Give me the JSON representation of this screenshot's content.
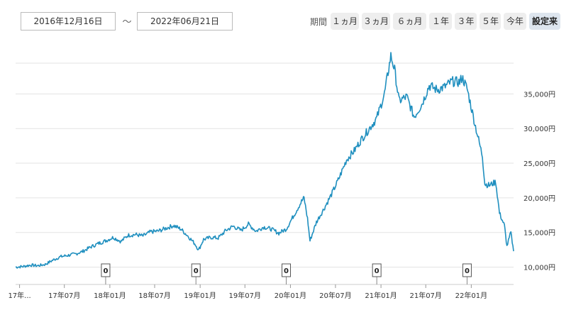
{
  "controls": {
    "start_date": "2016年12月16日",
    "separator": "～",
    "end_date": "2022年06月21日",
    "period_label": "期間",
    "periods": [
      {
        "label": "１ヵ月",
        "active": false
      },
      {
        "label": "３ヵ月",
        "active": false
      },
      {
        "label": "６ヵ月",
        "active": false
      },
      {
        "label": "１年",
        "active": false
      },
      {
        "label": "３年",
        "active": false
      },
      {
        "label": "５年",
        "active": false
      },
      {
        "label": "今年",
        "active": false
      },
      {
        "label": "設定来",
        "active": true
      }
    ]
  },
  "chart_data": {
    "type": "line",
    "title": "",
    "xlabel": "",
    "ylabel": "",
    "ylim": [
      7500,
      42000
    ],
    "xlim": [
      "2016-12-16",
      "2022-06-21"
    ],
    "grid": true,
    "y_ticks": [
      {
        "value": 10000,
        "label": "10,000円"
      },
      {
        "value": 15000,
        "label": "15,000円"
      },
      {
        "value": 20000,
        "label": "20,000円"
      },
      {
        "value": 25000,
        "label": "25,000円"
      },
      {
        "value": 30000,
        "label": "30,000円"
      },
      {
        "value": 35000,
        "label": "35,000円"
      }
    ],
    "x_ticks": [
      {
        "date": "2017-01-01",
        "label": "17年..."
      },
      {
        "date": "2017-07-01",
        "label": "17年07月"
      },
      {
        "date": "2018-01-01",
        "label": "18年01月"
      },
      {
        "date": "2018-07-01",
        "label": "18年07月"
      },
      {
        "date": "2019-01-01",
        "label": "19年01月"
      },
      {
        "date": "2019-07-01",
        "label": "19年07月"
      },
      {
        "date": "2020-01-01",
        "label": "20年01月"
      },
      {
        "date": "2020-07-01",
        "label": "20年07月"
      },
      {
        "date": "2021-01-01",
        "label": "21年01月"
      },
      {
        "date": "2021-07-01",
        "label": "21年07月"
      },
      {
        "date": "2022-01-01",
        "label": "22年01月"
      }
    ],
    "markers": [
      {
        "date": "2017-12-15",
        "label": "0"
      },
      {
        "date": "2018-12-15",
        "label": "0"
      },
      {
        "date": "2019-12-15",
        "label": "0"
      },
      {
        "date": "2020-12-15",
        "label": "0"
      },
      {
        "date": "2021-12-15",
        "label": "0"
      }
    ],
    "series": [
      {
        "color": "#1f8fbf",
        "points": [
          [
            "2016-12-16",
            10000
          ],
          [
            "2017-01-15",
            10100
          ],
          [
            "2017-02-15",
            10300
          ],
          [
            "2017-03-15",
            10200
          ],
          [
            "2017-04-15",
            10400
          ],
          [
            "2017-05-15",
            11000
          ],
          [
            "2017-06-15",
            11500
          ],
          [
            "2017-07-15",
            11700
          ],
          [
            "2017-08-15",
            11900
          ],
          [
            "2017-09-15",
            12300
          ],
          [
            "2017-10-15",
            12900
          ],
          [
            "2017-11-15",
            13400
          ],
          [
            "2017-12-15",
            13800
          ],
          [
            "2018-01-15",
            14300
          ],
          [
            "2018-02-15",
            13700
          ],
          [
            "2018-03-15",
            14600
          ],
          [
            "2018-04-15",
            14700
          ],
          [
            "2018-05-15",
            14500
          ],
          [
            "2018-06-15",
            15100
          ],
          [
            "2018-07-15",
            15200
          ],
          [
            "2018-08-15",
            15600
          ],
          [
            "2018-09-15",
            16000
          ],
          [
            "2018-10-15",
            15500
          ],
          [
            "2018-11-15",
            14400
          ],
          [
            "2018-12-10",
            13400
          ],
          [
            "2018-12-26",
            12500
          ],
          [
            "2019-01-15",
            14000
          ],
          [
            "2019-02-15",
            14300
          ],
          [
            "2019-03-15",
            14200
          ],
          [
            "2019-04-15",
            15300
          ],
          [
            "2019-05-15",
            15900
          ],
          [
            "2019-06-15",
            15300
          ],
          [
            "2019-07-15",
            16200
          ],
          [
            "2019-08-15",
            15200
          ],
          [
            "2019-09-15",
            15800
          ],
          [
            "2019-10-15",
            15500
          ],
          [
            "2019-11-15",
            14900
          ],
          [
            "2019-12-15",
            15500
          ],
          [
            "2020-01-15",
            17500
          ],
          [
            "2020-02-15",
            19500
          ],
          [
            "2020-02-25",
            20000
          ],
          [
            "2020-03-10",
            17000
          ],
          [
            "2020-03-20",
            13800
          ],
          [
            "2020-04-15",
            16500
          ],
          [
            "2020-05-15",
            18400
          ],
          [
            "2020-06-15",
            20500
          ],
          [
            "2020-07-15",
            22800
          ],
          [
            "2020-08-15",
            25500
          ],
          [
            "2020-09-15",
            26800
          ],
          [
            "2020-10-15",
            28500
          ],
          [
            "2020-11-15",
            30000
          ],
          [
            "2020-12-15",
            31500
          ],
          [
            "2021-01-15",
            35000
          ],
          [
            "2021-02-10",
            40500
          ],
          [
            "2021-02-25",
            38500
          ],
          [
            "2021-03-15",
            34000
          ],
          [
            "2021-04-15",
            34600
          ],
          [
            "2021-05-15",
            31700
          ],
          [
            "2021-06-15",
            33500
          ],
          [
            "2021-07-15",
            36200
          ],
          [
            "2021-08-15",
            35600
          ],
          [
            "2021-09-15",
            36000
          ],
          [
            "2021-10-15",
            36800
          ],
          [
            "2021-11-15",
            36700
          ],
          [
            "2021-11-25",
            37400
          ],
          [
            "2021-12-15",
            35800
          ],
          [
            "2022-01-15",
            30800
          ],
          [
            "2022-02-15",
            26000
          ],
          [
            "2022-02-25",
            22000
          ],
          [
            "2022-03-15",
            21800
          ],
          [
            "2022-04-10",
            22300
          ],
          [
            "2022-04-25",
            17800
          ],
          [
            "2022-05-15",
            16000
          ],
          [
            "2022-05-25",
            13000
          ],
          [
            "2022-06-10",
            15000
          ],
          [
            "2022-06-21",
            12300
          ]
        ]
      }
    ]
  }
}
